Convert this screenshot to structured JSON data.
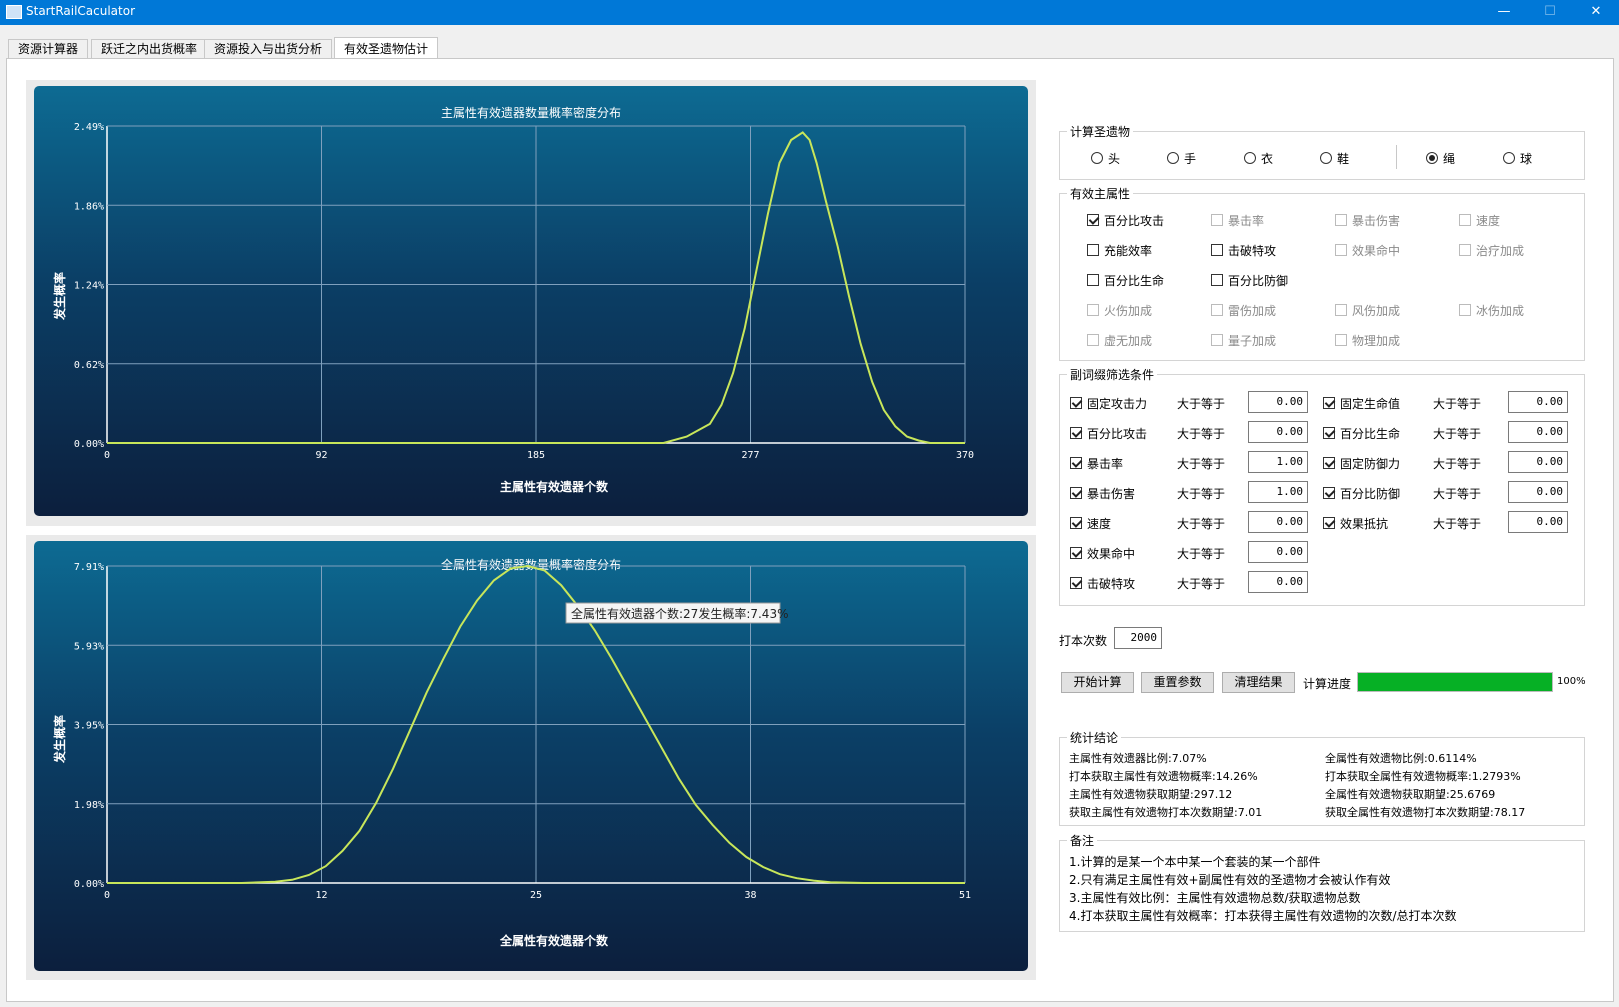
{
  "window": {
    "title": "StartRailCaculator",
    "buttons": {
      "minimize": "—",
      "maximize": "☐",
      "close": "✕"
    }
  },
  "tabs": [
    "资源计算器",
    "跃迁之内出货概率",
    "资源投入与出货分析",
    "有效圣遗物估计"
  ],
  "chart_top": {
    "title": "主属性有效遗器数量概率密度分布",
    "xlabel": "主属性有效遗器个数",
    "ylabel": "发生概率",
    "y_ticks": [
      "2.49%",
      "1.86%",
      "1.24%",
      "0.62%",
      "0.00%"
    ],
    "x_ticks": [
      "0",
      "92",
      "185",
      "277",
      "370"
    ]
  },
  "chart_bottom": {
    "title": "全属性有效遗器数量概率密度分布",
    "xlabel": "全属性有效遗器个数",
    "ylabel": "发生概率",
    "y_ticks": [
      "7.91%",
      "5.93%",
      "3.95%",
      "1.98%",
      "0.00%"
    ],
    "x_ticks": [
      "0",
      "12",
      "25",
      "38",
      "51"
    ],
    "tooltip": "全属性有效遗器个数:27发生概率:7.43%"
  },
  "chart_data": [
    {
      "type": "line",
      "title": "主属性有效遗器数量概率密度分布",
      "xlabel": "主属性有效遗器个数",
      "ylabel": "发生概率",
      "xlim": [
        0,
        370
      ],
      "ylim": [
        0,
        2.49
      ],
      "grid": true,
      "color": "#c8e65a",
      "x": [
        0,
        240,
        250,
        260,
        265,
        270,
        275,
        280,
        285,
        290,
        295,
        300,
        303,
        306,
        310,
        315,
        320,
        325,
        330,
        335,
        340,
        345,
        350,
        355,
        360,
        370
      ],
      "y": [
        0,
        0,
        0.05,
        0.15,
        0.3,
        0.55,
        0.9,
        1.35,
        1.8,
        2.2,
        2.38,
        2.44,
        2.38,
        2.2,
        1.9,
        1.55,
        1.15,
        0.78,
        0.48,
        0.26,
        0.13,
        0.05,
        0.02,
        0,
        0,
        0
      ]
    },
    {
      "type": "line",
      "title": "全属性有效遗器数量概率密度分布",
      "xlabel": "全属性有效遗器个数",
      "ylabel": "发生概率",
      "xlim": [
        0,
        51
      ],
      "ylim": [
        0,
        7.91
      ],
      "grid": true,
      "color": "#c8e65a",
      "x": [
        0,
        8,
        10,
        11,
        12,
        13,
        14,
        15,
        16,
        17,
        18,
        19,
        20,
        21,
        22,
        23,
        24,
        25,
        26,
        27,
        28,
        29,
        30,
        31,
        32,
        33,
        34,
        35,
        36,
        37,
        38,
        39,
        40,
        41,
        42,
        43,
        45,
        51
      ],
      "y": [
        0,
        0,
        0.03,
        0.08,
        0.2,
        0.42,
        0.8,
        1.3,
        2.0,
        2.85,
        3.8,
        4.75,
        5.6,
        6.4,
        7.05,
        7.55,
        7.85,
        7.91,
        7.8,
        7.43,
        6.9,
        6.3,
        5.6,
        4.85,
        4.1,
        3.35,
        2.6,
        1.95,
        1.45,
        1.0,
        0.65,
        0.4,
        0.22,
        0.12,
        0.06,
        0.02,
        0,
        0
      ]
    }
  ],
  "relic_group": {
    "label": "计算圣遗物",
    "options": [
      "头",
      "手",
      "衣",
      "鞋",
      "绳",
      "球"
    ],
    "selected": "绳"
  },
  "main_attr_group": {
    "label": "有效主属性",
    "items": [
      {
        "label": "百分比攻击",
        "checked": true,
        "enabled": true
      },
      {
        "label": "暴击率",
        "checked": false,
        "enabled": false
      },
      {
        "label": "暴击伤害",
        "checked": false,
        "enabled": false
      },
      {
        "label": "速度",
        "checked": false,
        "enabled": false
      },
      {
        "label": "充能效率",
        "checked": false,
        "enabled": true
      },
      {
        "label": "击破特攻",
        "checked": false,
        "enabled": true
      },
      {
        "label": "效果命中",
        "checked": false,
        "enabled": false
      },
      {
        "label": "治疗加成",
        "checked": false,
        "enabled": false
      },
      {
        "label": "百分比生命",
        "checked": false,
        "enabled": true
      },
      {
        "label": "百分比防御",
        "checked": false,
        "enabled": true
      },
      {
        "label": "",
        "checked": false,
        "enabled": false
      },
      {
        "label": "",
        "checked": false,
        "enabled": false
      },
      {
        "label": "火伤加成",
        "checked": false,
        "enabled": false
      },
      {
        "label": "雷伤加成",
        "checked": false,
        "enabled": false
      },
      {
        "label": "风伤加成",
        "checked": false,
        "enabled": false
      },
      {
        "label": "冰伤加成",
        "checked": false,
        "enabled": false
      },
      {
        "label": "虚无加成",
        "checked": false,
        "enabled": false
      },
      {
        "label": "量子加成",
        "checked": false,
        "enabled": false
      },
      {
        "label": "物理加成",
        "checked": false,
        "enabled": false
      }
    ]
  },
  "sub_filter_group": {
    "label": "副词缀筛选条件",
    "op": "大于等于",
    "left": [
      {
        "label": "固定攻击力",
        "value": "0.00"
      },
      {
        "label": "百分比攻击",
        "value": "0.00"
      },
      {
        "label": "暴击率",
        "value": "1.00"
      },
      {
        "label": "暴击伤害",
        "value": "1.00"
      },
      {
        "label": "速度",
        "value": "0.00"
      },
      {
        "label": "效果命中",
        "value": "0.00"
      },
      {
        "label": "击破特攻",
        "value": "0.00"
      }
    ],
    "right": [
      {
        "label": "固定生命值",
        "value": "0.00"
      },
      {
        "label": "百分比生命",
        "value": "0.00"
      },
      {
        "label": "固定防御力",
        "value": "0.00"
      },
      {
        "label": "百分比防御",
        "value": "0.00"
      },
      {
        "label": "效果抵抗",
        "value": "0.00"
      }
    ]
  },
  "runs": {
    "label": "打本次数",
    "value": "2000"
  },
  "actions": {
    "start": "开始计算",
    "reset": "重置参数",
    "clear": "清理结果",
    "progress_label": "计算进度",
    "progress_text": "100%",
    "progress": 1.0,
    "progress_color": "#06b025"
  },
  "stats_group": {
    "label": "统计结论",
    "left": [
      "主属性有效遗器比例:7.07%",
      "打本获取主属性有效遗物概率:14.26%",
      "主属性有效遗物获取期望:297.12",
      "获取主属性有效遗物打本次数期望:7.01"
    ],
    "right": [
      "全属性有效遗物比例:0.6114%",
      "打本获取全属性有效遗物概率:1.2793%",
      "全属性有效遗物获取期望:25.6769",
      "获取全属性有效遗物打本次数期望:78.17"
    ]
  },
  "notes_group": {
    "label": "备注",
    "lines": [
      "1.计算的是某一个本中某一个套装的某一个部件",
      "2.只有满足主属性有效+副属性有效的圣遗物才会被认作有效",
      "3.主属性有效比例：主属性有效遗物总数/获取遗物总数",
      "4.打本获取主属性有效概率：打本获得主属性有效遗物的次数/总打本次数"
    ]
  }
}
